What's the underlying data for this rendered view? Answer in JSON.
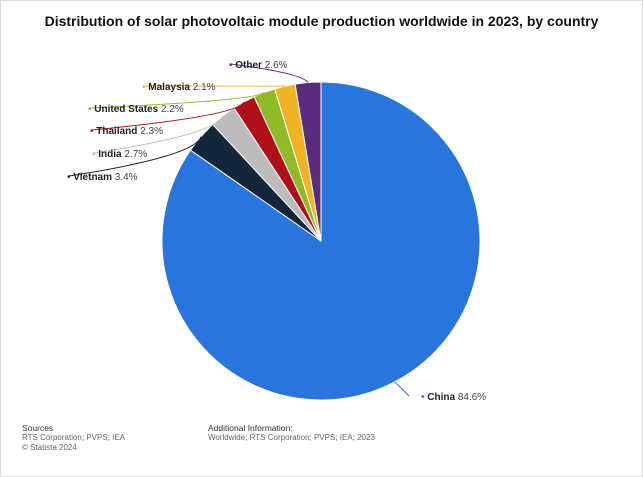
{
  "title": "Distribution of solar photovoltaic module production worldwide in 2023, by country",
  "chart_data": {
    "type": "pie",
    "title": "Distribution of solar photovoltaic module production worldwide in 2023, by country",
    "unit": "%",
    "slices": [
      {
        "label": "China",
        "value": 84.6,
        "display": "84.6%",
        "color": "#2876dd"
      },
      {
        "label": "Vietnam",
        "value": 3.4,
        "display": "3.4%",
        "color": "#14273a"
      },
      {
        "label": "India",
        "value": 2.7,
        "display": "2.7%",
        "color": "#bcbcbc"
      },
      {
        "label": "Thailand",
        "value": 2.3,
        "display": "2.3%",
        "color": "#b10f18"
      },
      {
        "label": "United States",
        "value": 2.2,
        "display": "2.2%",
        "color": "#8fbc26"
      },
      {
        "label": "Malaysia",
        "value": 2.1,
        "display": "2.1%",
        "color": "#f0b323"
      },
      {
        "label": "Other",
        "value": 2.6,
        "display": "2.6%",
        "color": "#5b2b7e"
      }
    ]
  },
  "footer": {
    "sources_heading": "Sources",
    "sources_line1": "RTS Corporation; PVPS; IEA",
    "sources_line2": "© Statista 2024",
    "additional_heading": "Additional Information:",
    "additional_line1": "Worldwide; RTS Corporation; PVPS; IEA; 2023"
  }
}
